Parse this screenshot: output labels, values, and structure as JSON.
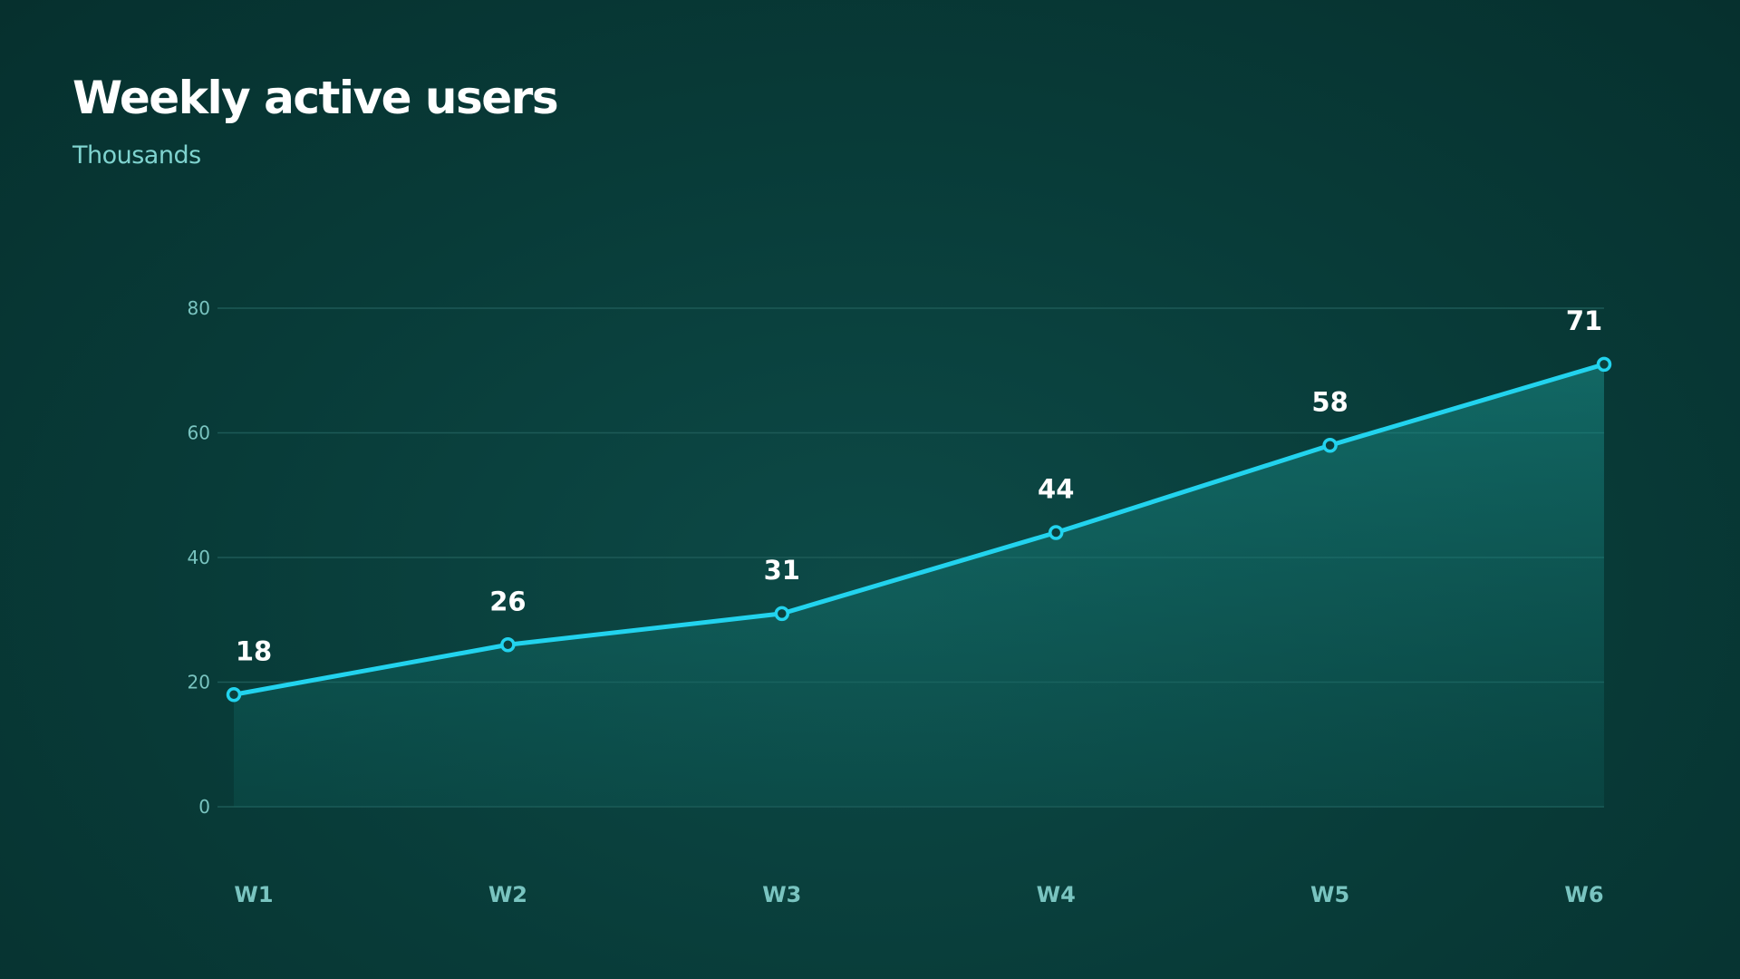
{
  "colors": {
    "line": "#22d3ee",
    "grid": "#1d5a57",
    "tick": "#79c4c0",
    "label": "#ffffff",
    "point_fill": "#0b3f3c"
  },
  "chart_data": {
    "type": "area",
    "title": "Weekly active users",
    "subtitle": "Thousands",
    "xlabel": "",
    "ylabel": "",
    "categories": [
      "W1",
      "W2",
      "W3",
      "W4",
      "W5",
      "W6"
    ],
    "values": [
      18,
      26,
      31,
      44,
      58,
      71
    ],
    "ylim": [
      0,
      80
    ],
    "yticks": [
      0,
      20,
      40,
      60,
      80
    ],
    "grid": true,
    "legend": "none"
  }
}
